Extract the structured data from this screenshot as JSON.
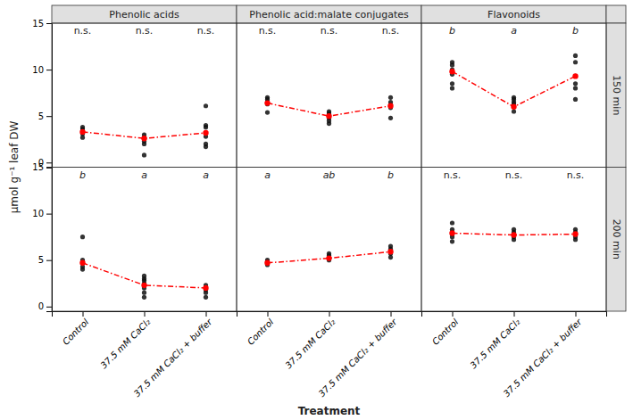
{
  "chart_data": {
    "type": "strip",
    "col_titles": [
      "Phenolic acids",
      "Phenolic acid:malate conjugates",
      "Flavonoids"
    ],
    "row_titles": [
      "150 min",
      "200 min"
    ],
    "categories": [
      "Control",
      "37.5 mM CaCl₂",
      "37.5 mM CaCl₂ + buffer"
    ],
    "ylabel": "μmol g⁻¹ leaf DW",
    "xlabel": "Treatment",
    "ylim": [
      -0.5,
      15
    ],
    "yticks": [
      0,
      5,
      10,
      15
    ],
    "grid": false,
    "panels": [
      [
        {
          "annotations": [
            "n.s.",
            "n.s.",
            "n.s."
          ],
          "series": [
            {
              "type": "scatter",
              "color": "#111111",
              "values": [
                [
                  2.7,
                  3.1,
                  3.3,
                  3.6,
                  3.8
                ],
                [
                  0.8,
                  2.0,
                  2.3,
                  2.7,
                  3.0
                ],
                [
                  1.7,
                  2.0,
                  2.8,
                  3.8,
                  4.0,
                  6.1
                ]
              ]
            },
            {
              "type": "line",
              "color": "#FF0000",
              "marker": "circle",
              "line_style": "dashdot",
              "values": [
                3.3,
                2.6,
                3.2
              ]
            }
          ]
        },
        {
          "annotations": [
            "n.s.",
            "n.s.",
            "n.s."
          ],
          "series": [
            {
              "type": "scatter",
              "color": "#111111",
              "values": [
                [
                  5.4,
                  6.3,
                  6.5,
                  6.8,
                  7.0
                ],
                [
                  4.2,
                  4.5,
                  4.8,
                  5.1,
                  5.3,
                  5.5
                ],
                [
                  4.8,
                  5.9,
                  6.2,
                  6.5,
                  7.0
                ]
              ]
            },
            {
              "type": "line",
              "color": "#FF0000",
              "marker": "circle",
              "line_style": "dashdot",
              "values": [
                6.4,
                5.0,
                6.1
              ]
            }
          ]
        },
        {
          "annotations": [
            "b",
            "a",
            "b"
          ],
          "series": [
            {
              "type": "scatter",
              "color": "#111111",
              "values": [
                [
                  8.0,
                  8.5,
                  9.5,
                  10.0,
                  10.5,
                  10.8
                ],
                [
                  5.5,
                  6.0,
                  6.3,
                  6.5,
                  6.8,
                  7.0
                ],
                [
                  6.8,
                  8.0,
                  8.5,
                  9.3,
                  10.8,
                  11.5
                ]
              ]
            },
            {
              "type": "line",
              "color": "#FF0000",
              "marker": "circle",
              "line_style": "dashdot",
              "values": [
                9.8,
                6.0,
                9.3
              ]
            }
          ]
        }
      ],
      [
        {
          "annotations": [
            "b",
            "a",
            "a"
          ],
          "series": [
            {
              "type": "scatter",
              "color": "#111111",
              "values": [
                [
                  4.0,
                  4.3,
                  4.7,
                  5.0,
                  7.5
                ],
                [
                  1.0,
                  1.5,
                  2.0,
                  2.5,
                  2.8,
                  3.0,
                  3.3
                ],
                [
                  1.0,
                  1.5,
                  1.8,
                  2.3
                ]
              ]
            },
            {
              "type": "line",
              "color": "#FF0000",
              "marker": "circle",
              "line_style": "dashdot",
              "values": [
                4.7,
                2.3,
                2.0
              ]
            }
          ]
        },
        {
          "annotations": [
            "a",
            "ab",
            "b"
          ],
          "series": [
            {
              "type": "scatter",
              "color": "#111111",
              "values": [
                [
                  4.5,
                  4.7,
                  4.8,
                  5.0
                ],
                [
                  5.0,
                  5.2,
                  5.3,
                  5.5,
                  5.7
                ],
                [
                  5.3,
                  5.7,
                  6.0,
                  6.2,
                  6.5
                ]
              ]
            },
            {
              "type": "line",
              "color": "#FF0000",
              "marker": "circle",
              "line_style": "dashdot",
              "values": [
                4.7,
                5.2,
                5.9
              ]
            }
          ]
        },
        {
          "annotations": [
            "n.s.",
            "n.s.",
            "n.s."
          ],
          "series": [
            {
              "type": "scatter",
              "color": "#111111",
              "values": [
                [
                  7.0,
                  7.5,
                  7.8,
                  8.0,
                  8.3,
                  9.0
                ],
                [
                  7.2,
                  7.5,
                  7.8,
                  8.0,
                  8.3
                ],
                [
                  7.2,
                  7.5,
                  7.8,
                  8.0,
                  8.3
                ]
              ]
            },
            {
              "type": "line",
              "color": "#FF0000",
              "marker": "circle",
              "line_style": "dashdot",
              "values": [
                7.9,
                7.7,
                7.8
              ]
            }
          ]
        }
      ]
    ]
  }
}
